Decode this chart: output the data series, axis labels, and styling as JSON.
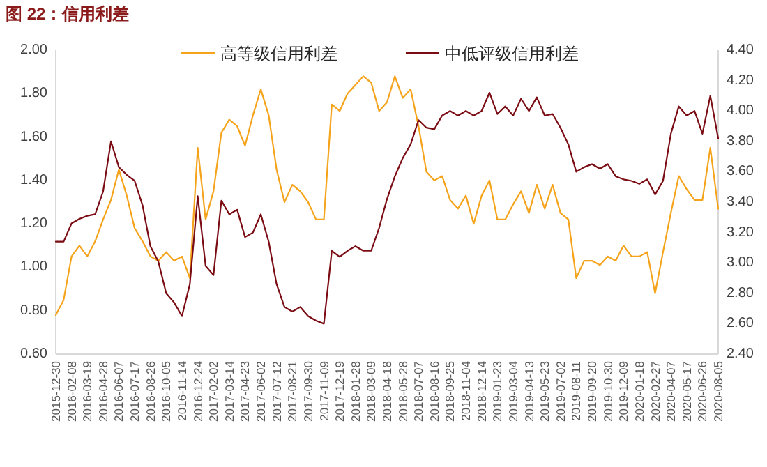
{
  "chart_data": {
    "type": "line",
    "title": "图 22：信用利差",
    "x": [
      "2015-12-30",
      "2016-01-19",
      "2016-02-08",
      "2016-02-28",
      "2016-03-19",
      "2016-04-08",
      "2016-04-28",
      "2016-05-18",
      "2016-06-07",
      "2016-06-27",
      "2016-07-17",
      "2016-08-06",
      "2016-08-26",
      "2016-09-15",
      "2016-10-05",
      "2016-10-25",
      "2016-11-14",
      "2016-12-04",
      "2016-12-24",
      "2017-01-13",
      "2017-02-02",
      "2017-02-22",
      "2017-03-14",
      "2017-04-03",
      "2017-04-23",
      "2017-05-13",
      "2017-06-02",
      "2017-06-22",
      "2017-07-12",
      "2017-08-01",
      "2017-08-21",
      "2017-09-10",
      "2017-09-30",
      "2017-10-20",
      "2017-11-09",
      "2017-11-29",
      "2017-12-19",
      "2018-01-08",
      "2018-01-28",
      "2018-02-17",
      "2018-03-09",
      "2018-03-29",
      "2018-04-18",
      "2018-05-08",
      "2018-05-28",
      "2018-06-17",
      "2018-07-07",
      "2018-07-27",
      "2018-08-16",
      "2018-09-05",
      "2018-09-25",
      "2018-10-15",
      "2018-11-04",
      "2018-11-24",
      "2018-12-14",
      "2019-01-03",
      "2019-01-23",
      "2019-02-12",
      "2019-03-04",
      "2019-03-24",
      "2019-04-13",
      "2019-05-03",
      "2019-05-23",
      "2019-06-12",
      "2019-07-02",
      "2019-07-22",
      "2019-08-11",
      "2019-08-31",
      "2019-09-20",
      "2019-10-10",
      "2019-10-30",
      "2019-11-19",
      "2019-12-09",
      "2019-12-29",
      "2020-01-18",
      "2020-02-07",
      "2020-02-27",
      "2020-03-18",
      "2020-04-07",
      "2020-04-27",
      "2020-05-17",
      "2020-06-06",
      "2020-06-26",
      "2020-07-16",
      "2020-08-05"
    ],
    "series": [
      {
        "name": "高等级信用利差",
        "color": "#f5a31a",
        "values": [
          0.78,
          0.85,
          1.05,
          1.1,
          1.05,
          1.12,
          1.22,
          1.31,
          1.45,
          1.33,
          1.18,
          1.12,
          1.05,
          1.03,
          1.07,
          1.03,
          1.05,
          0.95,
          1.55,
          1.22,
          1.35,
          1.62,
          1.68,
          1.65,
          1.56,
          1.7,
          1.82,
          1.7,
          1.45,
          1.3,
          1.38,
          1.35,
          1.3,
          1.22,
          1.22,
          1.75,
          1.72,
          1.8,
          1.84,
          1.88,
          1.85,
          1.72,
          1.76,
          1.88,
          1.78,
          1.82,
          1.65,
          1.44,
          1.4,
          1.42,
          1.31,
          1.27,
          1.33,
          1.2,
          1.33,
          1.4,
          1.22,
          1.22,
          1.29,
          1.35,
          1.25,
          1.38,
          1.27,
          1.38,
          1.25,
          1.22,
          0.95,
          1.03,
          1.03,
          1.01,
          1.05,
          1.03,
          1.1,
          1.05,
          1.05,
          1.07,
          0.88,
          1.07,
          1.25,
          1.42,
          1.36,
          1.31,
          1.31,
          1.55,
          1.27
        ]
      },
      {
        "name": "中低评级信用利差",
        "color": "#7b0c14",
        "axis": "y2",
        "values": [
          3.14,
          3.14,
          3.26,
          3.29,
          3.31,
          3.32,
          3.47,
          3.8,
          3.63,
          3.58,
          3.54,
          3.38,
          3.11,
          3.01,
          2.8,
          2.74,
          2.65,
          2.86,
          3.44,
          2.98,
          2.92,
          3.41,
          3.32,
          3.35,
          3.17,
          3.2,
          3.32,
          3.14,
          2.86,
          2.71,
          2.68,
          2.71,
          2.65,
          2.62,
          2.6,
          3.08,
          3.04,
          3.08,
          3.11,
          3.08,
          3.08,
          3.23,
          3.42,
          3.57,
          3.69,
          3.78,
          3.94,
          3.89,
          3.88,
          3.97,
          4.0,
          3.97,
          4.0,
          3.97,
          4.0,
          4.12,
          3.98,
          4.03,
          3.97,
          4.08,
          4.0,
          4.09,
          3.97,
          3.98,
          3.89,
          3.78,
          3.6,
          3.63,
          3.65,
          3.62,
          3.65,
          3.57,
          3.55,
          3.54,
          3.52,
          3.55,
          3.45,
          3.54,
          3.85,
          4.03,
          3.97,
          4.0,
          3.85,
          4.1,
          3.82
        ]
      }
    ],
    "xlim": [
      "2015-12-30",
      "2020-08-05"
    ],
    "xticks": [
      "2015-12-30",
      "2016-02-08",
      "2016-03-19",
      "2016-04-28",
      "2016-06-07",
      "2016-07-17",
      "2016-08-26",
      "2016-10-05",
      "2016-11-14",
      "2016-12-24",
      "2017-02-02",
      "2017-03-14",
      "2017-04-23",
      "2017-06-02",
      "2017-07-12",
      "2017-08-21",
      "2017-09-30",
      "2017-11-09",
      "2017-12-19",
      "2018-01-28",
      "2018-03-09",
      "2018-04-18",
      "2018-05-28",
      "2018-07-07",
      "2018-08-16",
      "2018-09-25",
      "2018-11-04",
      "2018-12-14",
      "2019-01-23",
      "2019-03-04",
      "2019-04-13",
      "2019-05-23",
      "2019-07-02",
      "2019-08-11",
      "2019-09-20",
      "2019-10-30",
      "2019-12-09",
      "2020-01-18",
      "2020-02-27",
      "2020-04-07",
      "2020-05-17",
      "2020-06-26",
      "2020-08-05"
    ],
    "ylim": [
      0.6,
      2.0
    ],
    "yticks": [
      {
        "value": 0.6,
        "label": "0.60"
      },
      {
        "value": 0.8,
        "label": "0.80"
      },
      {
        "value": 1.0,
        "label": "1.00"
      },
      {
        "value": 1.2,
        "label": "1.20"
      },
      {
        "value": 1.4,
        "label": "1.40"
      },
      {
        "value": 1.6,
        "label": "1.60"
      },
      {
        "value": 1.8,
        "label": "1.80"
      },
      {
        "value": 2.0,
        "label": "2.00"
      }
    ],
    "y2lim": [
      2.4,
      4.4
    ],
    "y2ticks": [
      {
        "value": 2.4,
        "label": "2.40"
      },
      {
        "value": 2.6,
        "label": "2.60"
      },
      {
        "value": 2.8,
        "label": "2.80"
      },
      {
        "value": 3.0,
        "label": "3.00"
      },
      {
        "value": 3.2,
        "label": "3.20"
      },
      {
        "value": 3.4,
        "label": "3.40"
      },
      {
        "value": 3.6,
        "label": "3.60"
      },
      {
        "value": 3.8,
        "label": "3.80"
      },
      {
        "value": 4.0,
        "label": "4.00"
      },
      {
        "value": 4.2,
        "label": "4.20"
      },
      {
        "value": 4.4,
        "label": "4.40"
      }
    ],
    "legend": "top"
  }
}
